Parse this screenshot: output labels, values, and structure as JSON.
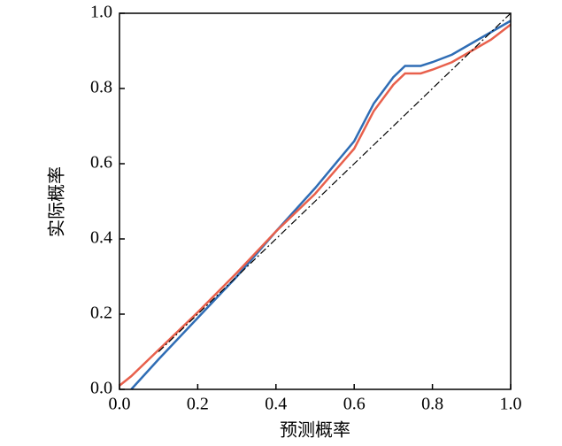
{
  "chart_data": {
    "type": "line",
    "x_label": "预测概率",
    "y_label": "实际概率",
    "x": [
      0,
      0.03,
      0.1,
      0.2,
      0.3,
      0.4,
      0.5,
      0.6,
      0.65,
      0.7,
      0.73,
      0.77,
      0.8,
      0.85,
      0.9,
      0.95,
      1.0
    ],
    "series": [
      {
        "color": "#2f6db5",
        "style": "solid",
        "values": [
          null,
          0,
          0.08,
          0.19,
          0.3,
          0.42,
          0.535,
          0.66,
          0.76,
          0.83,
          0.86,
          0.86,
          0.87,
          0.89,
          0.92,
          0.95,
          0.98
        ]
      },
      {
        "color": "#e8604c",
        "style": "solid",
        "values": [
          0.01,
          0.035,
          0.105,
          0.205,
          0.31,
          0.42,
          0.52,
          0.64,
          0.74,
          0.81,
          0.84,
          0.84,
          0.85,
          0.87,
          0.9,
          0.93,
          0.97
        ]
      },
      {
        "color": "#000000",
        "style": "dash-dot",
        "values": [
          null,
          null,
          0.1,
          0.2,
          0.3,
          0.4,
          0.5,
          0.6,
          0.65,
          0.7,
          0.73,
          0.77,
          0.8,
          0.85,
          0.9,
          0.95,
          1.0
        ]
      }
    ],
    "xlim": [
      0,
      1
    ],
    "ylim": [
      0,
      1
    ],
    "xticks": [
      {
        "value": 0,
        "label": "0.0"
      },
      0.2,
      0.4,
      0.6,
      0.8,
      {
        "value": 1,
        "label": "1.0"
      }
    ],
    "yticks": [
      {
        "value": 0,
        "label": "0.0"
      },
      0.2,
      0.4,
      0.6,
      0.8,
      {
        "value": 1,
        "label": "1.0"
      }
    ],
    "grid": false
  }
}
